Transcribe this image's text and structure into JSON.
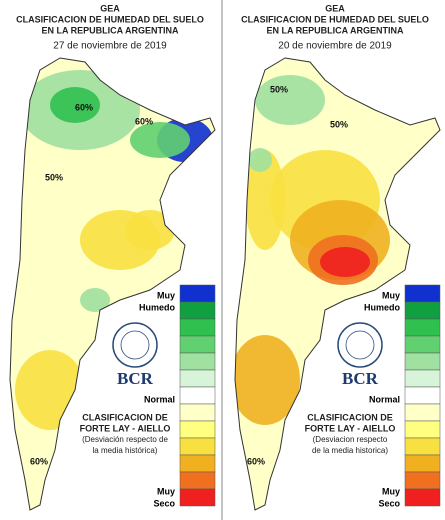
{
  "panels": [
    {
      "header": [
        "GEA",
        "CLASIFICACION DE HUMEDAD DEL SUELO",
        "EN LA REPUBLICA ARGENTINA"
      ],
      "date": "27 de noviembre de 2019",
      "contour_labels": [
        "60%",
        "60%",
        "50%",
        "60%"
      ],
      "legend": {
        "top": [
          "Muy",
          "Humedo"
        ],
        "middle": "Normal",
        "bottom": [
          "Muy",
          "Seco"
        ]
      },
      "logo": "BCR",
      "note": [
        "CLASIFICACION DE",
        "FORTE LAY - AIELLO",
        "(Desviación respecto de",
        "la media histórica)"
      ]
    },
    {
      "header": [
        "GEA",
        "CLASIFICACION DE HUMEDAD DEL SUELO",
        "EN LA REPUBLICA ARGENTINA"
      ],
      "date": "20 de noviembre de 2019",
      "contour_labels": [
        "50%",
        "50%",
        "60%"
      ],
      "legend": {
        "top": [
          "Muy",
          "Humedo"
        ],
        "middle": "Normal",
        "bottom": [
          "Muy",
          "Seco"
        ]
      },
      "logo": "BCR",
      "note": [
        "CLASIFICACION DE",
        "FORTE LAY - AIELLO",
        "(Desviacion respecto",
        "de la media historica)"
      ]
    }
  ]
}
